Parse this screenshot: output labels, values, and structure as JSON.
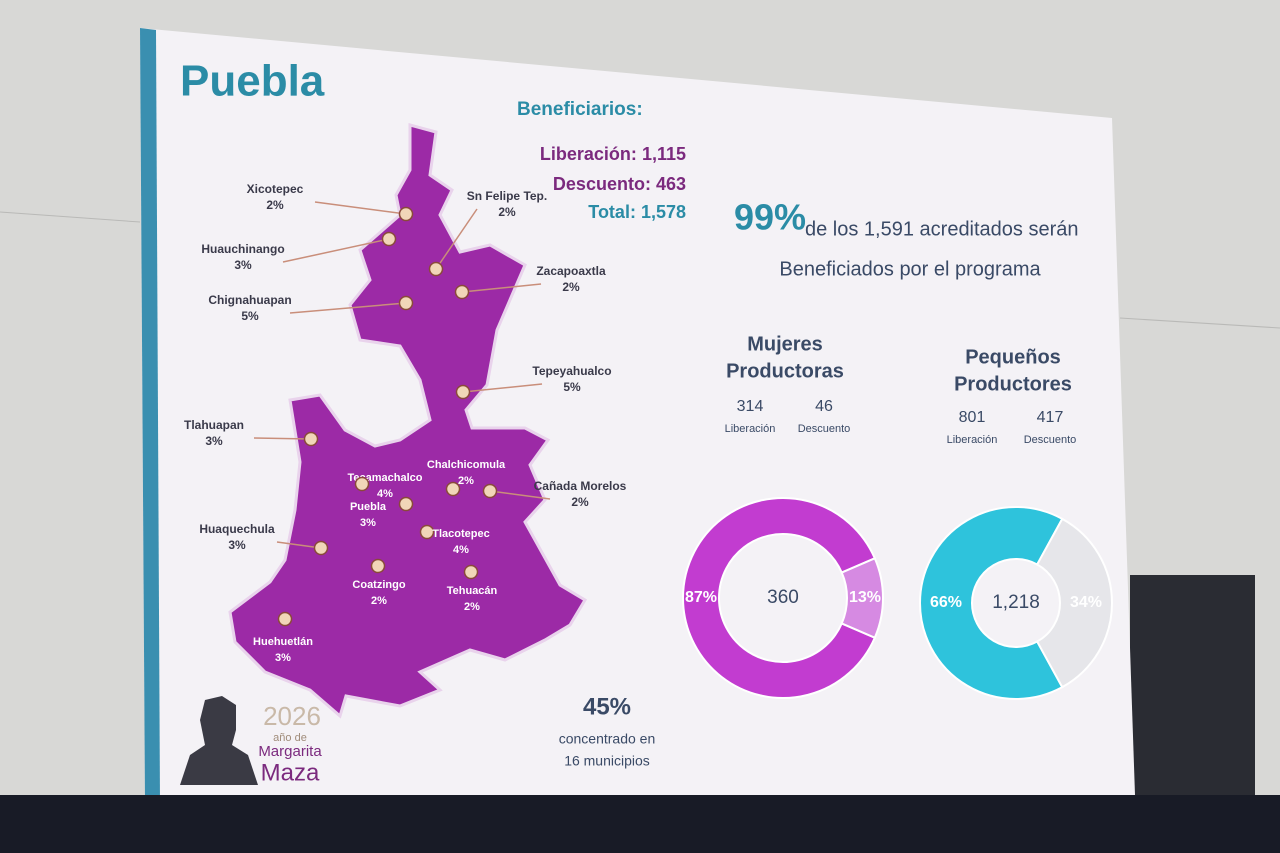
{
  "title": "Puebla",
  "beneficiarios": {
    "heading": "Beneficiarios:",
    "lines": [
      {
        "label": "Liberación:",
        "value": "1,115"
      },
      {
        "label": "Descuento:",
        "value": "463"
      },
      {
        "label": "Total:",
        "value": "1,578"
      }
    ]
  },
  "headline": {
    "big": "99%",
    "line1": "de los 1,591 acreditados serán",
    "line2": "Beneficiados por el programa"
  },
  "municipios": [
    {
      "name": "Xicotepec",
      "pct": "2%"
    },
    {
      "name": "Huauchinango",
      "pct": "3%"
    },
    {
      "name": "Chignahuapan",
      "pct": "5%"
    },
    {
      "name": "Sn Felipe Tep.",
      "pct": "2%"
    },
    {
      "name": "Zacapoaxtla",
      "pct": "2%"
    },
    {
      "name": "Tepeyahualco",
      "pct": "5%"
    },
    {
      "name": "Tlahuapan",
      "pct": "3%"
    },
    {
      "name": "Chalchicomula",
      "pct": "2%"
    },
    {
      "name": "Tecamachalco",
      "pct": "4%"
    },
    {
      "name": "Puebla",
      "pct": "3%"
    },
    {
      "name": "Cañada Morelos",
      "pct": "2%"
    },
    {
      "name": "Huaquechula",
      "pct": "3%"
    },
    {
      "name": "Tlacotepec",
      "pct": "4%"
    },
    {
      "name": "Coatzingo",
      "pct": "2%"
    },
    {
      "name": "Tehuacán",
      "pct": "2%"
    },
    {
      "name": "Huehuetlán",
      "pct": "3%"
    }
  ],
  "summary": {
    "big": "45%",
    "line1": "concentrado en",
    "line2": "16 municipios"
  },
  "logo": {
    "year": "2026",
    "line1": "año de",
    "line2": "Margarita",
    "line3": "Maza"
  },
  "donuts": [
    {
      "title": [
        "Mujeres",
        "Productoras"
      ],
      "stats": [
        {
          "value": "314",
          "label": "Liberación"
        },
        {
          "value": "46",
          "label": "Descuento"
        }
      ],
      "center": "360",
      "segments": [
        {
          "value": 87,
          "label": "87%",
          "color": "#c23cd0"
        },
        {
          "value": 13,
          "label": "13%",
          "color": "#d68ae2"
        }
      ]
    },
    {
      "title": [
        "Pequeños",
        "Productores"
      ],
      "stats": [
        {
          "value": "801",
          "label": "Liberación"
        },
        {
          "value": "417",
          "label": "Descuento"
        }
      ],
      "center": "1,218",
      "segments": [
        {
          "value": 66,
          "label": "66%",
          "color": "#2ec3dc"
        },
        {
          "value": 34,
          "label": "34%",
          "color": "#e6e6ea"
        }
      ]
    }
  ]
}
